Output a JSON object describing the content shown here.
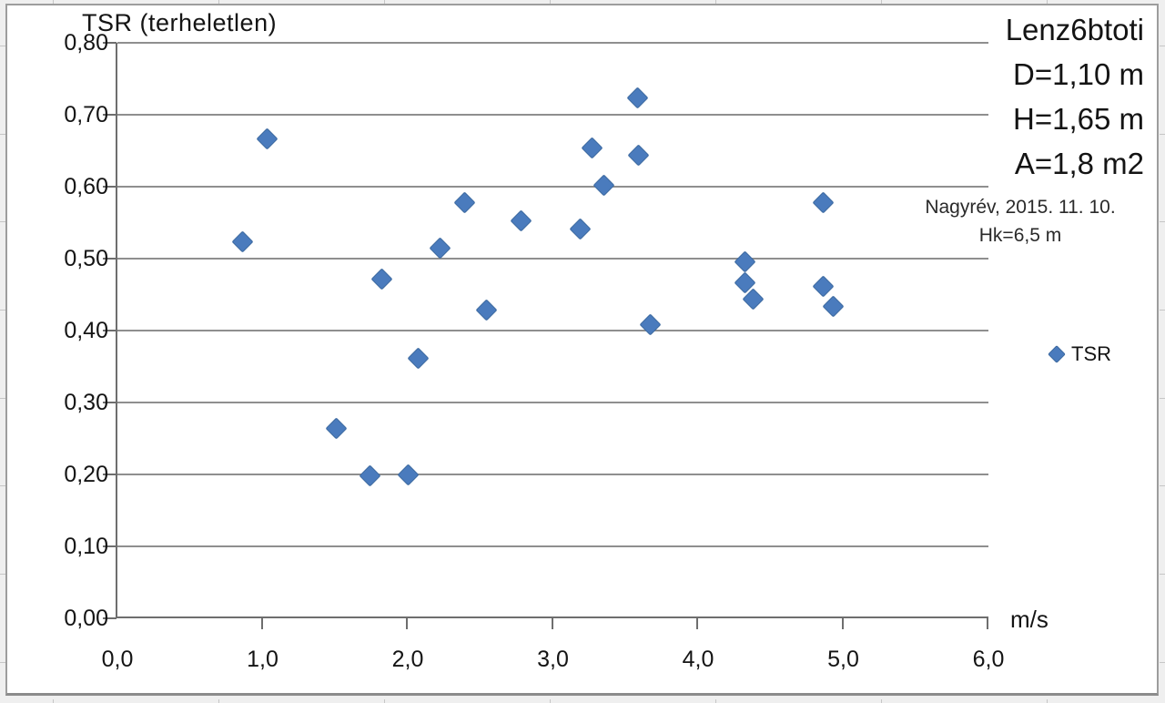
{
  "chart": {
    "title": "TSR (terheletlen)",
    "x_axis_unit_label": "m/s",
    "legend": {
      "label": "TSR"
    },
    "annotations": {
      "big_lines": [
        "Lenz6btoti",
        "D=1,10 m",
        "H=1,65 m",
        "A=1,8 m2"
      ],
      "small_lines": [
        "Nagyrév, 2015. 11. 10.",
        "Hk=6,5 m"
      ]
    },
    "colors": {
      "marker_fill": "#4a7bbd",
      "marker_edge": "#3c699f",
      "gridline": "#8f8f8f",
      "axis": "#6e6e6e",
      "text": "#141414"
    }
  },
  "chart_data": {
    "type": "scatter",
    "title": "TSR (terheletlen)",
    "xlabel": "m/s",
    "ylabel": "TSR (terheletlen)",
    "xlim": [
      0,
      6
    ],
    "ylim": [
      0,
      0.8
    ],
    "x_tick_step": 1.0,
    "y_tick_step": 0.1,
    "x_tick_labels": [
      "0,0",
      "1,0",
      "2,0",
      "3,0",
      "4,0",
      "5,0",
      "6,0"
    ],
    "y_tick_labels": [
      "0,00",
      "0,10",
      "0,20",
      "0,30",
      "0,40",
      "0,50",
      "0,60",
      "0,70",
      "0,80"
    ],
    "grid": "horizontal",
    "legend_position": "right",
    "series": [
      {
        "name": "TSR",
        "marker": "diamond",
        "color": "#4a7bbd",
        "points": [
          [
            0.86,
            0.524
          ],
          [
            1.03,
            0.666
          ],
          [
            1.51,
            0.264
          ],
          [
            1.74,
            0.198
          ],
          [
            1.82,
            0.471
          ],
          [
            2.0,
            0.2
          ],
          [
            2.07,
            0.361
          ],
          [
            2.22,
            0.515
          ],
          [
            2.39,
            0.578
          ],
          [
            2.54,
            0.429
          ],
          [
            2.78,
            0.552
          ],
          [
            3.19,
            0.541
          ],
          [
            3.27,
            0.654
          ],
          [
            3.35,
            0.602
          ],
          [
            3.58,
            0.724
          ],
          [
            3.59,
            0.644
          ],
          [
            3.67,
            0.408
          ],
          [
            4.32,
            0.495
          ],
          [
            4.32,
            0.467
          ],
          [
            4.38,
            0.444
          ],
          [
            4.86,
            0.578
          ],
          [
            4.86,
            0.461
          ],
          [
            4.93,
            0.433
          ]
        ]
      }
    ]
  }
}
